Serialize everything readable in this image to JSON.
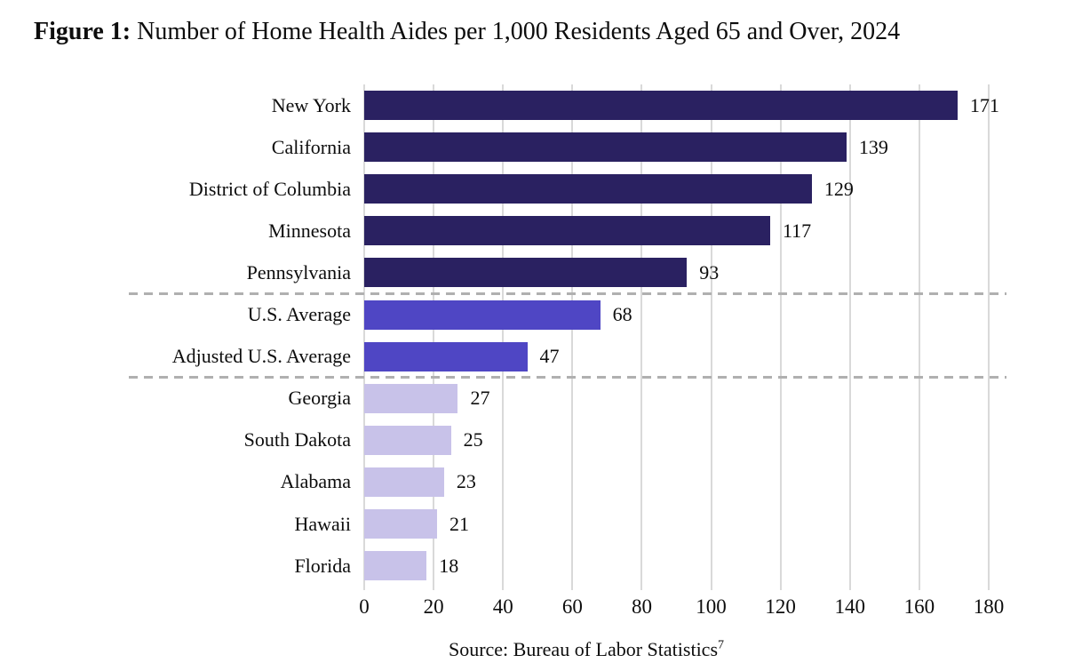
{
  "figure": {
    "title_prefix": "Figure 1:",
    "title_rest": " Number of Home Health Aides per 1,000 Residents Aged 65 and Over, 2024",
    "source_text": "Source: Bureau of Labor Statistics",
    "source_superscript": "7"
  },
  "chart_data": {
    "type": "bar",
    "orientation": "horizontal",
    "title": "Figure 1: Number of Home Health Aides per 1,000 Residents Aged 65 and Over, 2024",
    "categories": [
      "New York",
      "California",
      "District of Columbia",
      "Minnesota",
      "Pennsylvania",
      "U.S. Average",
      "Adjusted U.S. Average",
      "Georgia",
      "South Dakota",
      "Alabama",
      "Hawaii",
      "Florida"
    ],
    "values": [
      171,
      139,
      129,
      117,
      93,
      68,
      47,
      27,
      25,
      23,
      21,
      18
    ],
    "groups": [
      "state_high",
      "state_high",
      "state_high",
      "state_high",
      "state_high",
      "average",
      "average",
      "state_low",
      "state_low",
      "state_low",
      "state_low",
      "state_low"
    ],
    "group_colors": {
      "state_high": "#2a2161",
      "average": "#4f46c4",
      "state_low": "#c8c2e9"
    },
    "value_labels_shown": true,
    "xlabel": "",
    "ylabel": "",
    "xlim": [
      0,
      180
    ],
    "xticks": [
      0,
      20,
      40,
      60,
      80,
      100,
      120,
      140,
      160,
      180
    ],
    "grid": "vertical",
    "gridline_color": "#d9d9d9",
    "separator_after_indices": [
      4,
      6
    ],
    "separator_style": "dashed",
    "separator_color": "#b0b0b0",
    "legend": "none",
    "source": "Source: Bureau of Labor Statistics^7"
  }
}
